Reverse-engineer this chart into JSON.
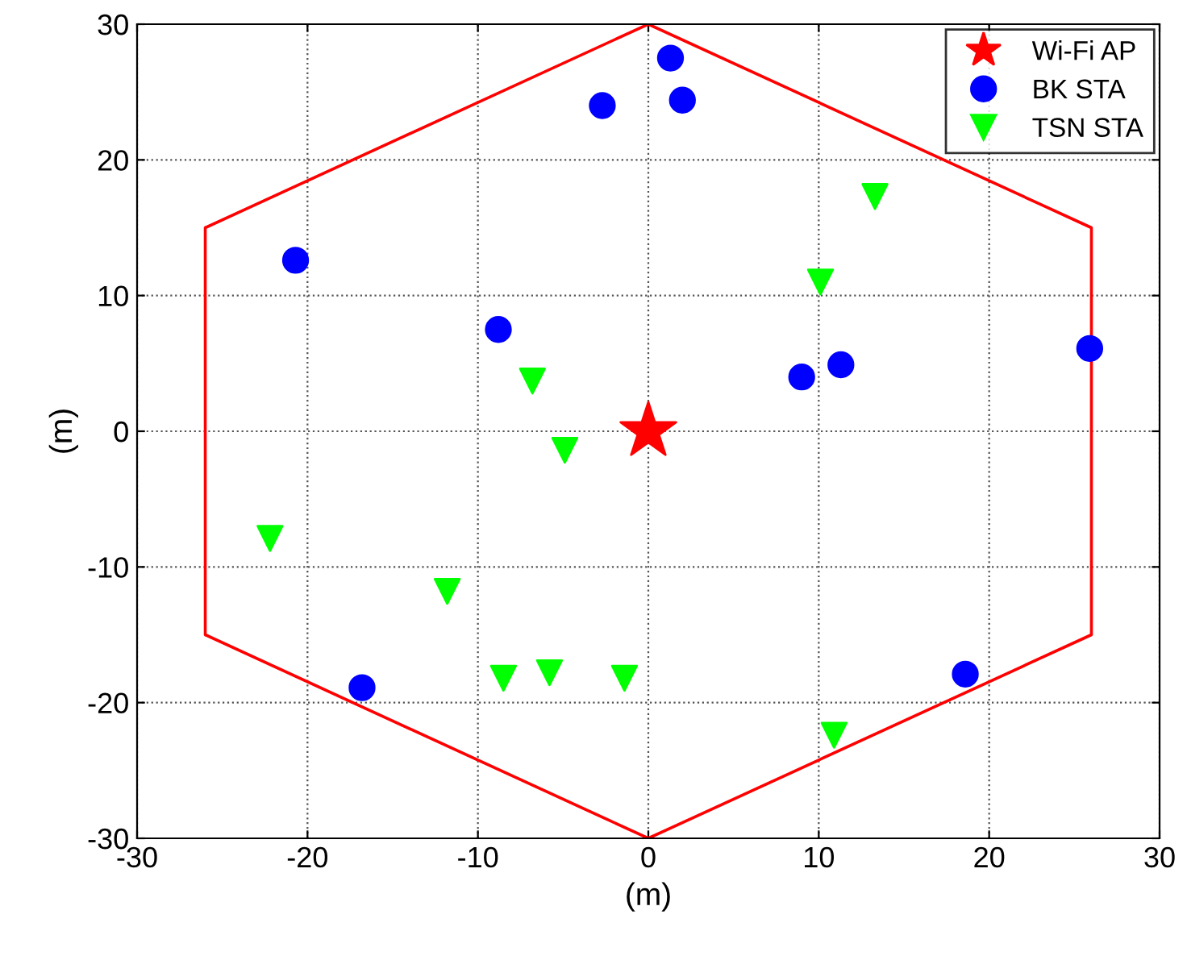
{
  "chart_data": {
    "type": "scatter",
    "xlabel": "(m)",
    "ylabel": "(m)",
    "xlim": [
      -30,
      30
    ],
    "ylim": [
      -30,
      30
    ],
    "xticks": [
      -30,
      -20,
      -10,
      0,
      10,
      20,
      30
    ],
    "yticks": [
      -30,
      -20,
      -10,
      0,
      10,
      20,
      30
    ],
    "grid": true,
    "legend": "top right",
    "series": [
      {
        "type": "line",
        "color": "#ff0000",
        "marker": "none",
        "line_style": "solid",
        "x": [
          0,
          26,
          26,
          0
        ],
        "values": [
          30,
          15,
          -15,
          -30
        ]
      },
      {
        "type": "line",
        "color": "#ff0000",
        "marker": "none",
        "line_style": "solid",
        "x": [
          0,
          -26,
          -26,
          0
        ],
        "values": [
          -30,
          -15,
          15,
          30
        ]
      },
      {
        "name": "Wi-Fi AP",
        "color": "#ff0000",
        "marker": "star",
        "x": [
          0
        ],
        "values": [
          0
        ]
      },
      {
        "name": "BK STA",
        "color": "#0000ff",
        "marker": "circle",
        "x": [
          -20.7,
          -2.7,
          1.3,
          2.0,
          -8.8,
          9.0,
          11.3,
          25.9,
          -16.8,
          18.6
        ],
        "values": [
          12.6,
          24.0,
          27.5,
          24.4,
          7.5,
          4.0,
          4.9,
          6.1,
          -18.9,
          -17.9
        ]
      },
      {
        "name": "TSN STA",
        "color": "#00ff00",
        "marker": "triangle",
        "x": [
          13.3,
          10.1,
          -6.8,
          -4.9,
          -22.2,
          -11.8,
          -8.5,
          -5.8,
          -1.4,
          10.9
        ],
        "values": [
          17.3,
          11.0,
          3.7,
          -1.4,
          -7.9,
          -11.8,
          -18.2,
          -17.8,
          -18.2,
          -22.4
        ]
      }
    ]
  }
}
